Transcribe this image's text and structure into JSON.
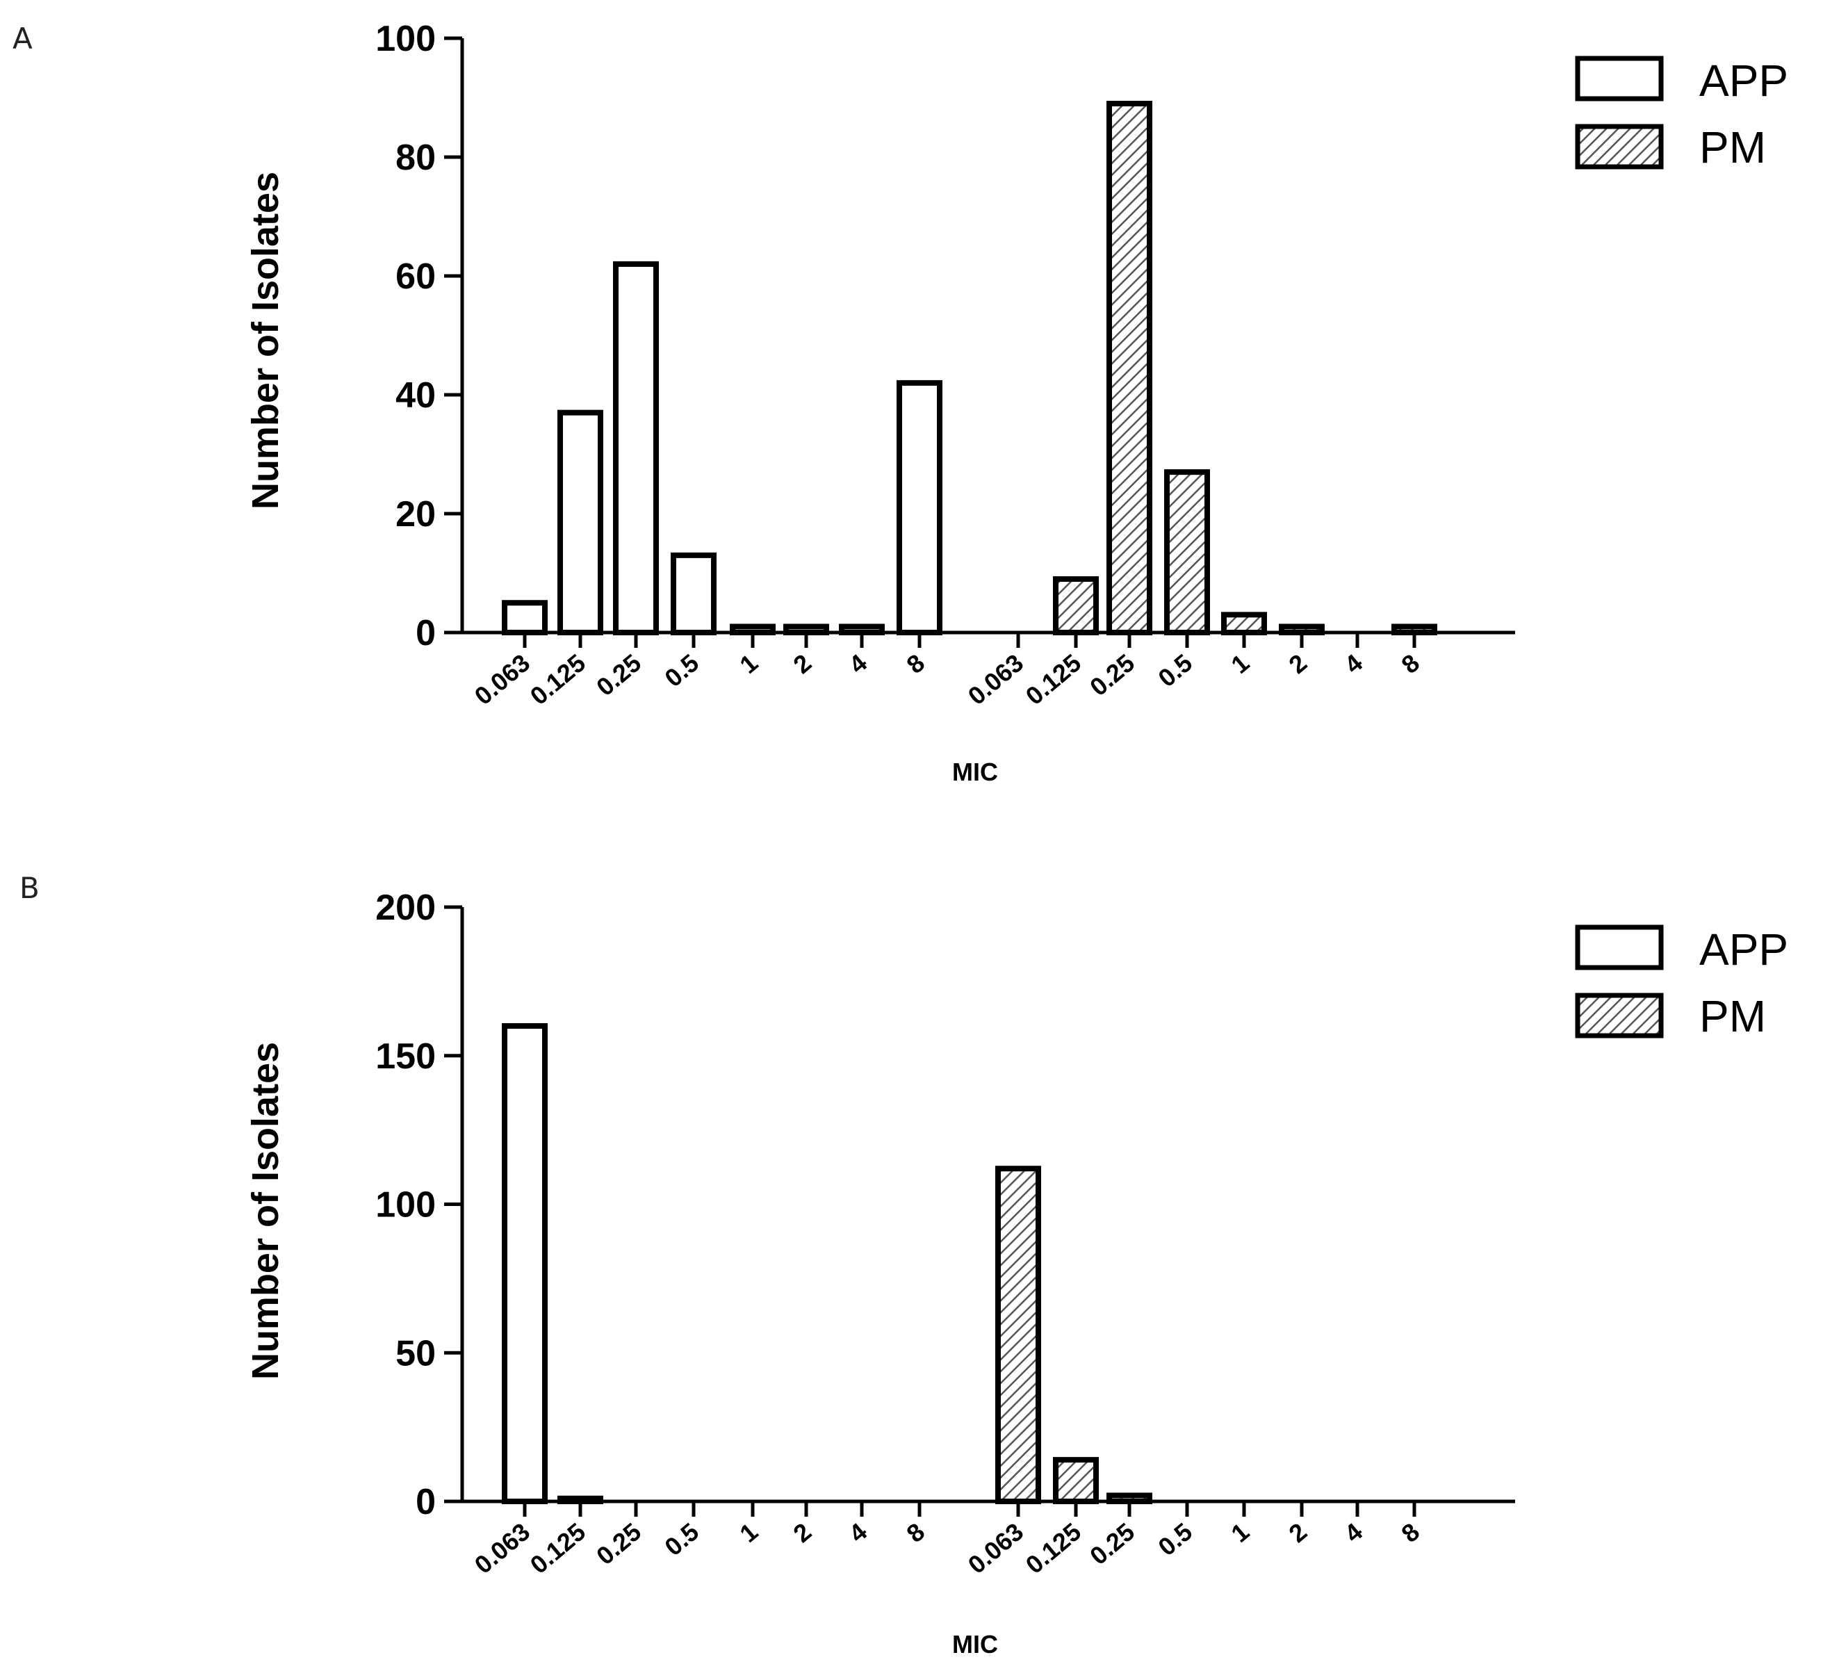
{
  "chart_data": [
    {
      "panel": "A",
      "type": "bar",
      "title": "",
      "xlabel": "MIC",
      "ylabel": "Number of Isolates",
      "ylim": [
        0,
        100
      ],
      "yticks": [
        "0",
        "20",
        "40",
        "60",
        "80",
        "100"
      ],
      "categories": [
        "0.063",
        "0.125",
        "0.25",
        "0.5",
        "1",
        "2",
        "4",
        "8",
        "0.063",
        "0.125",
        "0.25",
        "0.5",
        "1",
        "2",
        "4",
        "8"
      ],
      "series": [
        {
          "name": "APP",
          "fill": "white",
          "values": [
            5,
            37,
            62,
            13,
            1,
            1,
            1,
            42,
            null,
            null,
            null,
            null,
            null,
            null,
            null,
            null
          ]
        },
        {
          "name": "PM",
          "fill": "hatched",
          "values": [
            null,
            null,
            null,
            null,
            null,
            null,
            null,
            null,
            0,
            9,
            89,
            27,
            3,
            1,
            0,
            1
          ]
        }
      ],
      "legend": [
        "APP",
        "PM"
      ],
      "legend_position": "top-right"
    },
    {
      "panel": "B",
      "type": "bar",
      "title": "",
      "xlabel": "MIC",
      "ylabel": "Number of Isolates",
      "ylim": [
        0,
        200
      ],
      "yticks": [
        "0",
        "50",
        "100",
        "150",
        "200"
      ],
      "categories": [
        "0.063",
        "0.125",
        "0.25",
        "0.5",
        "1",
        "2",
        "4",
        "8",
        "0.063",
        "0.125",
        "0.25",
        "0.5",
        "1",
        "2",
        "4",
        "8"
      ],
      "series": [
        {
          "name": "APP",
          "fill": "white",
          "values": [
            160,
            1,
            0,
            0,
            0,
            0,
            0,
            0,
            null,
            null,
            null,
            null,
            null,
            null,
            null,
            null
          ]
        },
        {
          "name": "PM",
          "fill": "hatched",
          "values": [
            null,
            null,
            null,
            null,
            null,
            null,
            null,
            null,
            112,
            14,
            2,
            0,
            0,
            0,
            0,
            0
          ]
        }
      ],
      "legend": [
        "APP",
        "PM"
      ],
      "legend_position": "top-right"
    }
  ],
  "colors": {
    "axis": "#000000",
    "bar_fill_app": "#ffffff",
    "hatch": "#555555",
    "background": "#ffffff"
  }
}
